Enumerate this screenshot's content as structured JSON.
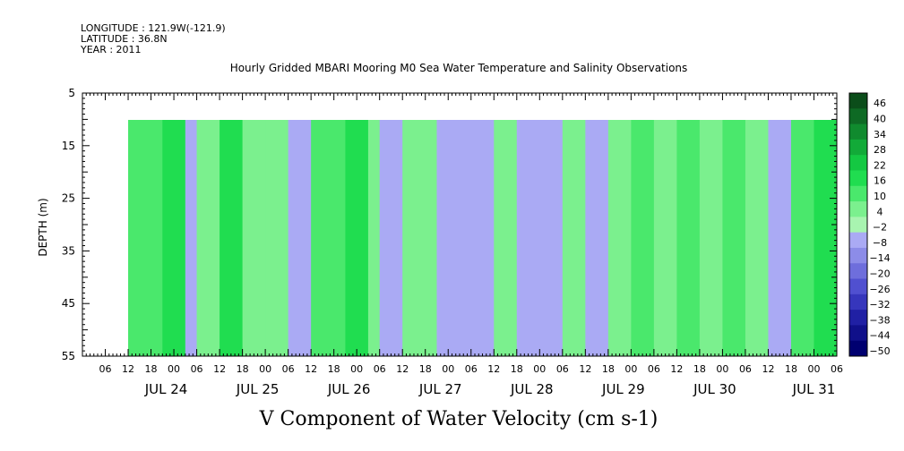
{
  "meta": {
    "longitude": "LONGITUDE : 121.9W(-121.9)",
    "latitude": "LATITUDE : 36.8N",
    "year": "YEAR : 2011"
  },
  "chart_data": {
    "type": "heatmap",
    "title": "Hourly Gridded MBARI Mooring M0 Sea Water Temperature and Salinity Observations",
    "xlabel": "V Component of Water Velocity (cm s-1)",
    "ylabel": "DEPTH (m)",
    "x_range_hours": [
      "JUL 23 00",
      "JUL 31 06"
    ],
    "data_start": "JUL 23 12",
    "ylim": [
      55,
      5
    ],
    "y_ticks": [
      5,
      15,
      25,
      35,
      45,
      55
    ],
    "data_depth_range": [
      10,
      55
    ],
    "hour_labels": [
      "06",
      "12",
      "18",
      "00",
      "06",
      "12",
      "18",
      "00",
      "06",
      "12",
      "18",
      "00",
      "06",
      "12",
      "18",
      "00",
      "06",
      "12",
      "18",
      "00",
      "06",
      "12",
      "18",
      "00",
      "06",
      "12",
      "18",
      "00",
      "06",
      "12",
      "18",
      "00",
      "06"
    ],
    "day_labels": [
      "JUL 24",
      "JUL 25",
      "JUL 26",
      "JUL 27",
      "JUL 28",
      "JUL 29",
      "JUL 30",
      "JUL 31"
    ],
    "colorbar": {
      "levels": [
        46,
        40,
        34,
        28,
        22,
        16,
        10,
        4,
        -2,
        -8,
        -14,
        -20,
        -26,
        -32,
        -38,
        -44,
        -50
      ],
      "colors_high_to_low": [
        "#0b4d1a",
        "#0e6a24",
        "#108a2e",
        "#12aa38",
        "#14c842",
        "#20dd50",
        "#4ae86c",
        "#7bf08e",
        "#a8f4b0",
        "#aaaaf4",
        "#8c8ce8",
        "#6e6edc",
        "#5050d0",
        "#3636bc",
        "#2020a4",
        "#10108a",
        "#000070"
      ],
      "placement": "right"
    },
    "columns_note": "time, dominant velocity (cm s-1) per day-time segment",
    "segments": [
      {
        "t": "JUL 23 12",
        "v": 10
      },
      {
        "t": "JUL 23 21",
        "v": 16
      },
      {
        "t": "JUL 24 03",
        "v": -4
      },
      {
        "t": "JUL 24 06",
        "v": 8
      },
      {
        "t": "JUL 24 12",
        "v": 16
      },
      {
        "t": "JUL 24 18",
        "v": 6
      },
      {
        "t": "JUL 25 00",
        "v": 8
      },
      {
        "t": "JUL 25 06",
        "v": -4
      },
      {
        "t": "JUL 25 12",
        "v": 10
      },
      {
        "t": "JUL 25 21",
        "v": 18
      },
      {
        "t": "JUL 26 03",
        "v": 4
      },
      {
        "t": "JUL 26 06",
        "v": -4
      },
      {
        "t": "JUL 26 12",
        "v": 6
      },
      {
        "t": "JUL 26 21",
        "v": -6
      },
      {
        "t": "JUL 27 06",
        "v": -4
      },
      {
        "t": "JUL 27 12",
        "v": 6
      },
      {
        "t": "JUL 27 18",
        "v": -6
      },
      {
        "t": "JUL 28 00",
        "v": -4
      },
      {
        "t": "JUL 28 06",
        "v": 4
      },
      {
        "t": "JUL 28 12",
        "v": -4
      },
      {
        "t": "JUL 28 18",
        "v": 6
      },
      {
        "t": "JUL 29 00",
        "v": 10
      },
      {
        "t": "JUL 29 06",
        "v": 6
      },
      {
        "t": "JUL 29 12",
        "v": 12
      },
      {
        "t": "JUL 29 18",
        "v": 8
      },
      {
        "t": "JUL 30 00",
        "v": 14
      },
      {
        "t": "JUL 30 06",
        "v": 6
      },
      {
        "t": "JUL 30 12",
        "v": -4
      },
      {
        "t": "JUL 30 18",
        "v": 10
      },
      {
        "t": "JUL 31 00",
        "v": 16
      },
      {
        "t": "JUL 31 06",
        "v": 8
      }
    ]
  }
}
